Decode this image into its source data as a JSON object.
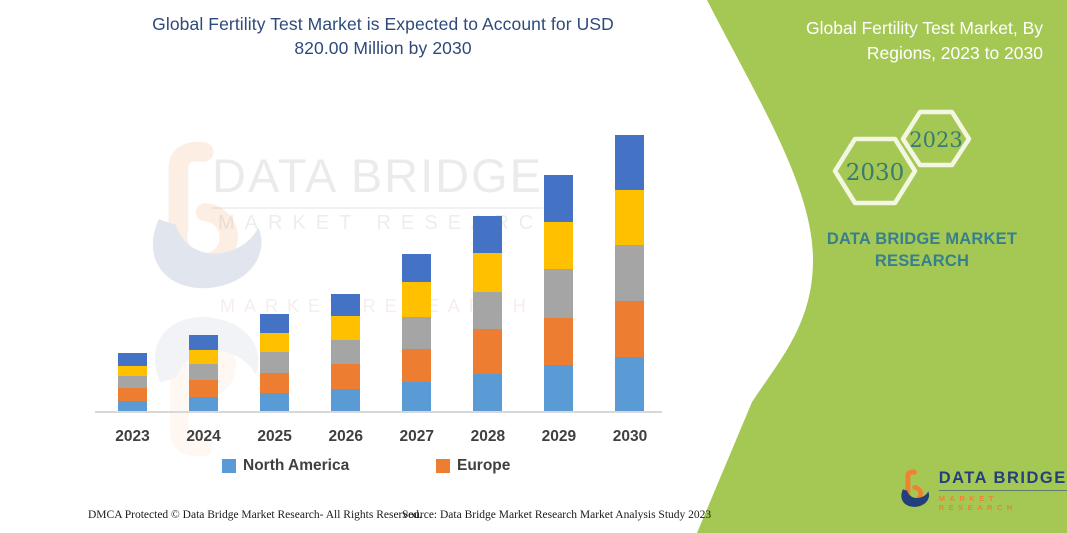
{
  "title": {
    "text": "Global Fertility Test Market is Expected to Account for USD 820.00 Million by 2030"
  },
  "side_panel": {
    "title": "Global Fertility Test Market, By Regions, 2023 to 2030",
    "hexagon_years": [
      "2030",
      "2023"
    ],
    "brand": "DATA BRIDGE MARKET RESEARCH",
    "bg_color": "#a5c854",
    "title_color": "#ffffff",
    "brand_color": "#377f8c"
  },
  "chart_data": {
    "type": "bar",
    "stacked": true,
    "title": "Global Fertility Test Market is Expected to Account for USD 820.00 Million by 2030",
    "unit": "USD Million",
    "categories": [
      "2023",
      "2024",
      "2025",
      "2026",
      "2027",
      "2028",
      "2029",
      "2030"
    ],
    "series": [
      {
        "name": "North America",
        "color": "#5B9BD5",
        "in_legend": true,
        "values": [
          33,
          44,
          56,
          69,
          89,
          112,
          139,
          163
        ]
      },
      {
        "name": "Europe",
        "color": "#ED7D31",
        "in_legend": true,
        "values": [
          38,
          50,
          59,
          74,
          98,
          133,
          139,
          166
        ]
      },
      {
        "name": "unlabeled-gray-series",
        "color": "#A5A5A5",
        "in_legend": false,
        "values": [
          36,
          47,
          62,
          69,
          95,
          110,
          145,
          165
        ]
      },
      {
        "name": "unlabeled-yellow-series",
        "color": "#FFC000",
        "in_legend": false,
        "values": [
          30,
          44,
          56,
          71,
          104,
          115,
          139,
          163
        ]
      },
      {
        "name": "unlabeled-darkblue-series",
        "color": "#4472C4",
        "in_legend": false,
        "values": [
          38,
          44,
          57,
          67,
          83,
          110,
          140,
          163
        ]
      }
    ],
    "totals": [
      175,
      229,
      290,
      350,
      469,
      580,
      702,
      820
    ],
    "ylim": [
      0,
      820
    ],
    "grid": false,
    "y_axis_visible": false,
    "legend_position": "bottom"
  },
  "watermark": {
    "line1": "DATA BRIDGE",
    "line2": "MARKET RESEARCH",
    "line3": "MARKET RESEARCH"
  },
  "footer": {
    "left": "DMCA Protected © Data Bridge Market Research-  All Rights Reserved.",
    "source": "Source: Data Bridge Market Research  Market Analysis Study 2023"
  },
  "logo": {
    "name": "DATA BRIDGE",
    "subtitle": "MARKET RESEARCH"
  }
}
